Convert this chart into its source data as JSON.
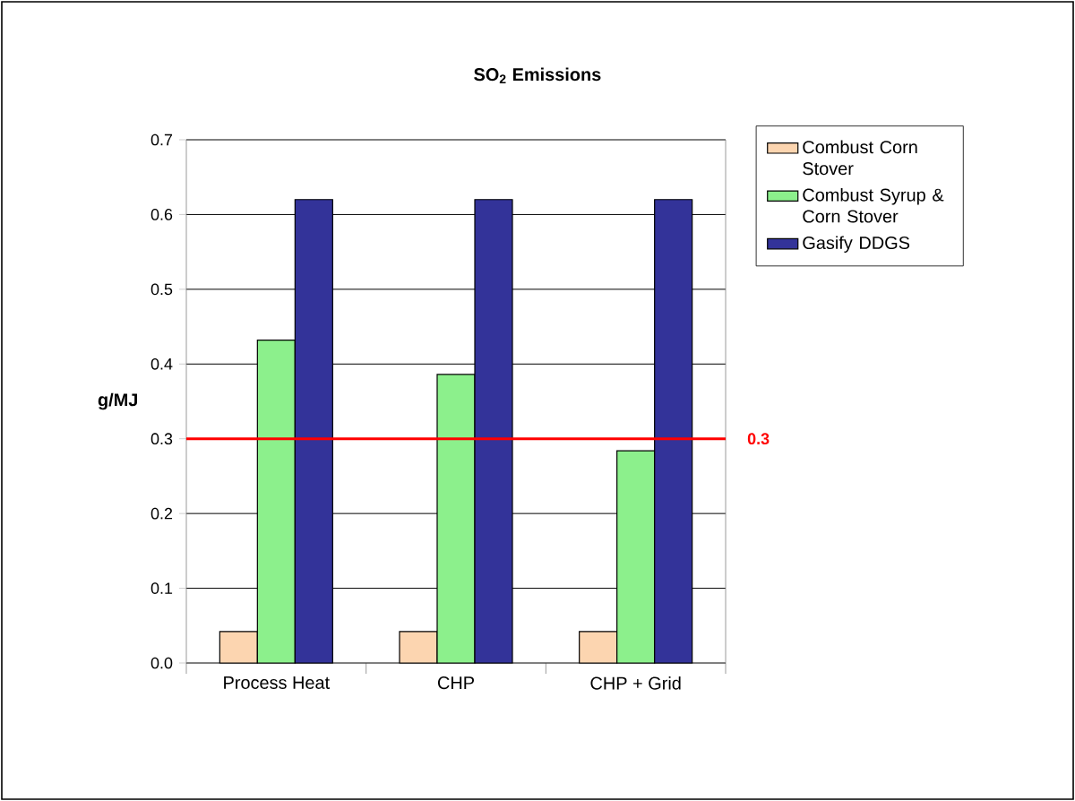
{
  "chart_data": {
    "type": "bar",
    "title": "SO$_{2}$ Emissions",
    "ylabel": "g/MJ",
    "categories": [
      "Process Heat",
      "CHP",
      "CHP + Grid"
    ],
    "series": [
      {
        "name": "Combust Corn Stover",
        "color": "#fcd5b0",
        "values": [
          0.042,
          0.042,
          0.042
        ]
      },
      {
        "name": "Combust Syrup & Corn Stover",
        "color": "#8cf08c",
        "values": [
          0.432,
          0.386,
          0.284
        ]
      },
      {
        "name": "Gasify DDGS",
        "color": "#333399",
        "values": [
          0.62,
          0.62,
          0.62
        ]
      }
    ],
    "ylim": [
      0,
      0.7
    ],
    "yticks": [
      {
        "value": 0,
        "label": "0.0"
      },
      0.1,
      0.2,
      0.3,
      0.4,
      0.5,
      0.6,
      0.7
    ],
    "ref_lines": [
      {
        "axis": "y",
        "value": 0.3,
        "label": "0.3",
        "color": "#ff0000"
      }
    ],
    "grid": "y",
    "legend": "top right"
  }
}
